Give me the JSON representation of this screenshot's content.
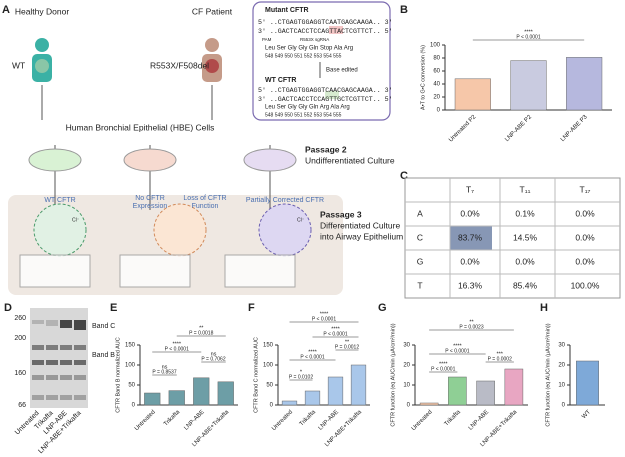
{
  "panel_labels": [
    "A",
    "B",
    "C",
    "D",
    "E",
    "F",
    "G",
    "H"
  ],
  "figure": {
    "healthy_donor": "Healthy Donor",
    "cf_patient": "CF Patient",
    "wt": "WT",
    "genotype": "R553X/F508del",
    "hbe": "Human Bronchial Epithelial (HBE) Cells",
    "mutant_title": "Mutant CFTR",
    "mutant_top": "5' ..CTGAGTGGAGGTCAATGAGCAAGA.. 3'",
    "mutant_bottom": "3' ..GACTCACCTCCAGTTACTCGTTCT.. 5'",
    "pam": "PAM",
    "sgrna": "R553X sgRNA",
    "mutant_aa": "Leu  Ser  Gly  Gly  Gln  Stop  Ala  Arg",
    "positions": "548  549  550  551  552  553  554  555",
    "base_edited": "Base edited",
    "wt_title": "WT CFTR",
    "wt_top": "5' ..CTGAGTGGAGGTCAACGAGCAAGA.. 3'",
    "wt_bottom": "3' ..GACTCACCTCCAGTTGCTCGTTCT.. 5'",
    "wt_aa": "Leu  Ser  Gly  Gly  Gln  Arg  Ala  Arg",
    "passage2": "Passage 2",
    "undiff": "Undifferentiated Culture",
    "passage3": "Passage 3",
    "diff1": "Differentiated Culture",
    "diff2": "into Airway Epithelium",
    "wt_cftr": "WT CFTR",
    "no_cftr": "No CFTR",
    "expression": "Expression",
    "loss": "Loss of CFTR",
    "function": "Function",
    "partial": "Partially Corrected CFTR",
    "cl": "Cl⁻"
  },
  "table": {
    "header": [
      "T₇",
      "T₁₁",
      "T₁₇"
    ],
    "rows": [
      [
        "A",
        "0.0%",
        "0.1%",
        "0.0%"
      ],
      [
        "C",
        "83.7%",
        "14.5%",
        "0.0%"
      ],
      [
        "G",
        "0.0%",
        "0.0%",
        "0.0%"
      ],
      [
        "T",
        "16.3%",
        "85.4%",
        "100.0%"
      ]
    ]
  },
  "gel": {
    "markers": [
      "260",
      "200",
      "160",
      "66"
    ],
    "bands": [
      "Band C",
      "Band B"
    ],
    "lanes": [
      "Untreated",
      "Trikafta",
      "LNP-ABE",
      "LNP-ABE+Trikafta"
    ]
  },
  "chart_data": [
    {
      "type": "bar",
      "ylabel": "A•T to G•C conversion (%)",
      "categories": [
        "Untreated P2",
        "LNP-ABE P2",
        "LNP-ABE P3"
      ],
      "values": [
        48,
        76,
        81
      ],
      "colors": [
        "#f6c7a9",
        "#c9cbe0",
        "#b6b8de"
      ],
      "ylim": [
        0,
        100
      ],
      "yticks": [
        0,
        20,
        40,
        60,
        80,
        100
      ],
      "annotations": [
        {
          "stars": "****",
          "text": "P < 0.0001"
        }
      ]
    },
    {
      "type": "bar",
      "ylabel": "CFTR Band B normalized AUC",
      "categories": [
        "Untreated",
        "Trikafta",
        "LNP-ABE",
        "LNP-ABE+Trikafta"
      ],
      "values": [
        30,
        36,
        68,
        58
      ],
      "colors": [
        "#6d9ea6",
        "#6d9ea6",
        "#6d9ea6",
        "#6d9ea6"
      ],
      "ylim": [
        0,
        150
      ],
      "yticks": [
        0,
        50,
        100,
        150
      ],
      "annotations": [
        {
          "stars": "ns",
          "text": "P = 0.8537"
        },
        {
          "stars": "****",
          "text": "P < 0.0001"
        },
        {
          "stars": "**",
          "text": "P = 0.0018"
        },
        {
          "stars": "ns",
          "text": "P = 0.7062"
        }
      ]
    },
    {
      "type": "bar",
      "ylabel": "CFTR Band C normalized AUC",
      "categories": [
        "Untreated",
        "Trikafta",
        "LNP-ABE",
        "LNP-ABE+Trikafta"
      ],
      "values": [
        10,
        35,
        70,
        100
      ],
      "colors": [
        "#a9c7ea",
        "#a9c7ea",
        "#a9c7ea",
        "#a9c7ea"
      ],
      "ylim": [
        0,
        150
      ],
      "yticks": [
        0,
        50,
        100,
        150
      ],
      "annotations": [
        {
          "stars": "*",
          "text": "P = 0.0102"
        },
        {
          "stars": "****",
          "text": "P < 0.0001"
        },
        {
          "stars": "**",
          "text": "P = 0.0012"
        },
        {
          "stars": "****",
          "text": "P < 0.0001"
        },
        {
          "stars": "****",
          "text": "P < 0.0001"
        }
      ]
    },
    {
      "type": "bar",
      "ylabel": "CFTR function (eq AUC/min (µA/cm²/min))",
      "categories": [
        "Untreated",
        "Trikafta",
        "LNP-ABE",
        "LNP-ABE+Trikafta"
      ],
      "values": [
        1,
        14,
        12,
        18
      ],
      "colors": [
        "#f6c7a9",
        "#8fcf95",
        "#b9bbc6",
        "#e8a6c2"
      ],
      "ylim": [
        0,
        30
      ],
      "yticks": [
        0,
        10,
        20,
        30
      ],
      "annotations": [
        {
          "stars": "****",
          "text": "P < 0.0001"
        },
        {
          "stars": "****",
          "text": "P < 0.0001"
        },
        {
          "stars": "***",
          "text": "P = 0.0002"
        },
        {
          "stars": "**",
          "text": "P = 0.0023"
        }
      ]
    },
    {
      "type": "bar",
      "ylabel": "CFTR function (eq AUC/min (µA/cm²/min))",
      "categories": [
        "WT"
      ],
      "values": [
        22
      ],
      "colors": [
        "#7ea9d8"
      ],
      "ylim": [
        0,
        30
      ],
      "yticks": [
        0,
        10,
        20,
        30
      ],
      "annotations": []
    }
  ]
}
